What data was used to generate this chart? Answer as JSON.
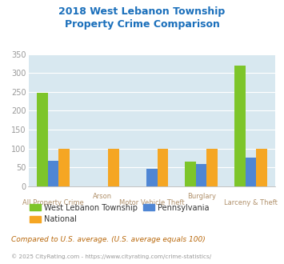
{
  "title": "2018 West Lebanon Township\nProperty Crime Comparison",
  "title_color": "#1a6fbb",
  "categories": [
    "All Property Crime",
    "Arson",
    "Motor Vehicle Theft",
    "Burglary",
    "Larceny & Theft"
  ],
  "west_lebanon": [
    247,
    0,
    0,
    65,
    320
  ],
  "pennsylvania": [
    67,
    0,
    46,
    58,
    76
  ],
  "national": [
    100,
    100,
    100,
    100,
    100
  ],
  "west_lebanon_color": "#7dc52a",
  "pennsylvania_color": "#4f86d4",
  "national_color": "#f5a623",
  "plot_bg": "#d8e8f0",
  "ylim": [
    0,
    350
  ],
  "yticks": [
    0,
    50,
    100,
    150,
    200,
    250,
    300,
    350
  ],
  "footnote": "Compared to U.S. average. (U.S. average equals 100)",
  "footnote2": "© 2025 CityRating.com - https://www.cityrating.com/crime-statistics/",
  "footnote_color": "#b8670a",
  "footnote2_color": "#999999",
  "xlabel_color": "#b0906a",
  "tick_color": "#999999",
  "grid_color": "#ffffff",
  "bar_width": 0.22,
  "labels_row1": [
    [
      "Arson",
      1.5
    ],
    [
      "Burglary",
      3.5
    ]
  ],
  "labels_row2": [
    [
      "All Property Crime",
      0.5
    ],
    [
      "Motor Vehicle Theft",
      2.5
    ],
    [
      "Larceny & Theft",
      4.5
    ]
  ]
}
